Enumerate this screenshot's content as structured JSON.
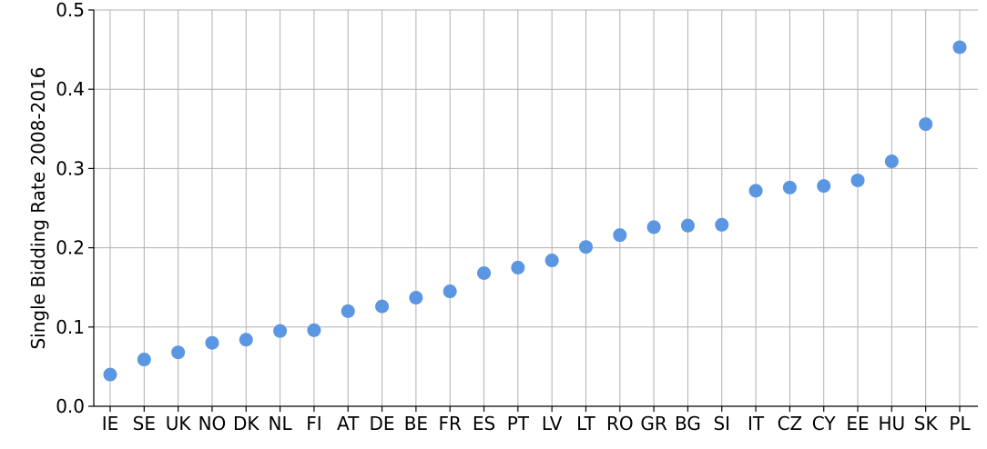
{
  "chart_data": {
    "type": "scatter",
    "title": "",
    "xlabel": "",
    "ylabel": "Single Bidding Rate 2008-2016",
    "categories": [
      "IE",
      "SE",
      "UK",
      "NO",
      "DK",
      "NL",
      "FI",
      "AT",
      "DE",
      "BE",
      "FR",
      "ES",
      "PT",
      "LV",
      "LT",
      "RO",
      "GR",
      "BG",
      "SI",
      "IT",
      "CZ",
      "CY",
      "EE",
      "HU",
      "SK",
      "PL"
    ],
    "series": [
      {
        "values": [
          0.04,
          0.059,
          0.068,
          0.08,
          0.084,
          0.095,
          0.096,
          0.12,
          0.126,
          0.137,
          0.145,
          0.168,
          0.175,
          0.184,
          0.201,
          0.216,
          0.226,
          0.228,
          0.229,
          0.272,
          0.276,
          0.278,
          0.285,
          0.309,
          0.356,
          0.453
        ],
        "color": "#5b96e2"
      }
    ],
    "ylim": [
      0,
      0.5
    ],
    "yticks": [
      "0.0",
      "0.1",
      "0.2",
      "0.3",
      "0.4",
      "0.5"
    ],
    "grid": true,
    "legend": "none"
  }
}
